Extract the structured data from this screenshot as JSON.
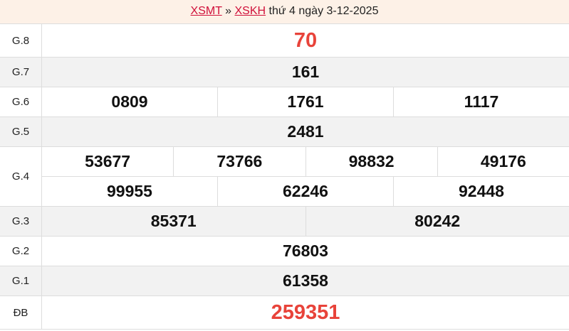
{
  "header": {
    "link1": "XSMT",
    "sep": "»",
    "link2": "XSKH",
    "text": "thứ 4 ngày 3-12-2025"
  },
  "colors": {
    "accent": "#e8433a",
    "link": "#d0103a",
    "header_bg": "#fdf1e7",
    "alt_row": "#f2f2f2"
  },
  "prizes": [
    {
      "label": "G.8",
      "rows": [
        [
          "70"
        ]
      ],
      "highlight": true
    },
    {
      "label": "G.7",
      "rows": [
        [
          "161"
        ]
      ]
    },
    {
      "label": "G.6",
      "rows": [
        [
          "0809",
          "1761",
          "1117"
        ]
      ]
    },
    {
      "label": "G.5",
      "rows": [
        [
          "2481"
        ]
      ]
    },
    {
      "label": "G.4",
      "rows": [
        [
          "53677",
          "73766",
          "98832",
          "49176"
        ],
        [
          "99955",
          "62246",
          "92448"
        ]
      ]
    },
    {
      "label": "G.3",
      "rows": [
        [
          "85371",
          "80242"
        ]
      ]
    },
    {
      "label": "G.2",
      "rows": [
        [
          "76803"
        ]
      ]
    },
    {
      "label": "G.1",
      "rows": [
        [
          "61358"
        ]
      ]
    },
    {
      "label": "ĐB",
      "rows": [
        [
          "259351"
        ]
      ],
      "highlight": true
    }
  ]
}
